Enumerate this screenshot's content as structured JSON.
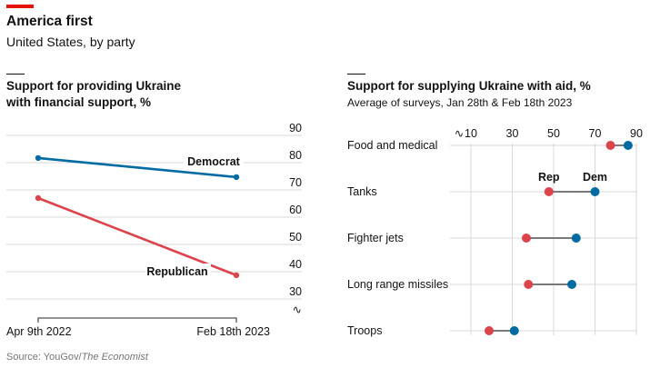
{
  "header": {
    "title": "America first",
    "subtitle": "United States, by party"
  },
  "colors": {
    "accent": "#e3120b",
    "democrat": "#006ba2",
    "republican": "#db444b",
    "grid": "#d9d9d9",
    "connector": "#758d99"
  },
  "source": {
    "prefix": "Source: YouGov/",
    "italic": "The Economist"
  },
  "chart_data": [
    {
      "type": "line",
      "title": "Support for providing Ukraine with financial support, %",
      "title_lines": [
        "Support for providing Ukraine",
        "with financial support, %"
      ],
      "x": [
        "Apr 9th 2022",
        "Feb 18th 2023"
      ],
      "series": [
        {
          "name": "Democrat",
          "values": [
            81.7,
            74.7
          ]
        },
        {
          "name": "Republican",
          "values": [
            67,
            38.7
          ]
        }
      ],
      "ylim": [
        25,
        90
      ],
      "yticks": [
        "90",
        "80",
        "70",
        "60",
        "50",
        "40",
        "30"
      ],
      "ytick_values": [
        90,
        80,
        70,
        60,
        50,
        40,
        30
      ],
      "grid": true
    },
    {
      "type": "scatter",
      "subtype": "dumbbell",
      "title": "Support for supplying Ukraine with aid, %",
      "subtitle": "Average of surveys, Jan 28th & Feb 18th 2023",
      "categories": [
        "Food and medical",
        "Tanks",
        "Fighter jets",
        "Long range missiles",
        "Troops"
      ],
      "series": [
        {
          "name": "Rep",
          "values": [
            77.5,
            47.7,
            36.8,
            37.8,
            18.8
          ]
        },
        {
          "name": "Dem",
          "values": [
            86,
            70,
            60.9,
            58.8,
            31
          ]
        }
      ],
      "xlim": [
        0,
        90
      ],
      "xticks": [
        "10",
        "30",
        "50",
        "70",
        "90"
      ],
      "xtick_values": [
        10,
        30,
        50,
        70,
        90
      ],
      "grid": true
    }
  ]
}
